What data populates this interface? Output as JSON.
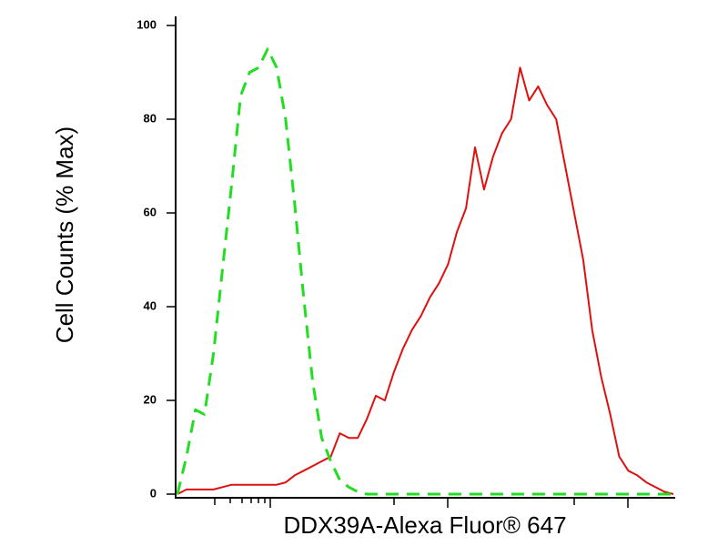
{
  "chart_data": {
    "type": "line",
    "xlabel": "DDX39A-Alexa Fluor® 647",
    "ylabel": "Cell Counts (% Max)",
    "categories": [
      null,
      null,
      null,
      null,
      null,
      null,
      null,
      null,
      null,
      null,
      null,
      null,
      null,
      null,
      null,
      null,
      null,
      null,
      null,
      null,
      null,
      null,
      null,
      null,
      null,
      null,
      null,
      null,
      null,
      null,
      null,
      null,
      null,
      null,
      null,
      null,
      null,
      null,
      null,
      null,
      null,
      null,
      null,
      null,
      null,
      null,
      null,
      null,
      null,
      null,
      null,
      null,
      null,
      null,
      null,
      null
    ],
    "series": [
      {
        "color": "#e01010",
        "dash": "solid",
        "values": [
          0,
          1,
          1,
          1,
          1,
          1.5,
          2,
          2,
          2,
          2,
          2,
          2,
          2.5,
          4,
          5,
          6,
          7,
          8,
          13,
          12,
          12,
          16,
          21,
          20,
          26,
          31,
          35,
          38,
          42,
          45,
          49,
          56,
          61,
          74,
          65,
          72,
          77,
          80,
          91,
          84,
          87,
          83,
          80,
          70,
          60,
          50,
          35,
          25,
          17,
          8,
          5,
          4,
          2.5,
          1.5,
          0.5,
          0
        ]
      },
      {
        "color": "#22dd22",
        "dash": "dashed",
        "values": [
          0,
          8,
          18,
          17,
          30,
          48,
          66,
          85,
          90,
          91,
          95,
          91,
          80,
          62,
          42,
          24,
          12,
          7,
          3,
          1.5,
          0.5,
          0,
          0,
          0,
          0,
          0,
          0,
          0,
          0,
          0,
          0,
          0,
          0,
          0,
          0,
          0,
          0,
          0,
          0,
          0,
          0,
          0,
          0,
          0,
          0,
          0,
          0,
          0,
          0,
          0,
          0,
          0,
          0,
          0,
          0,
          0
        ]
      }
    ],
    "ylim": [
      0,
      100
    ],
    "yticks": [
      0,
      20,
      40,
      60,
      80,
      100
    ]
  }
}
